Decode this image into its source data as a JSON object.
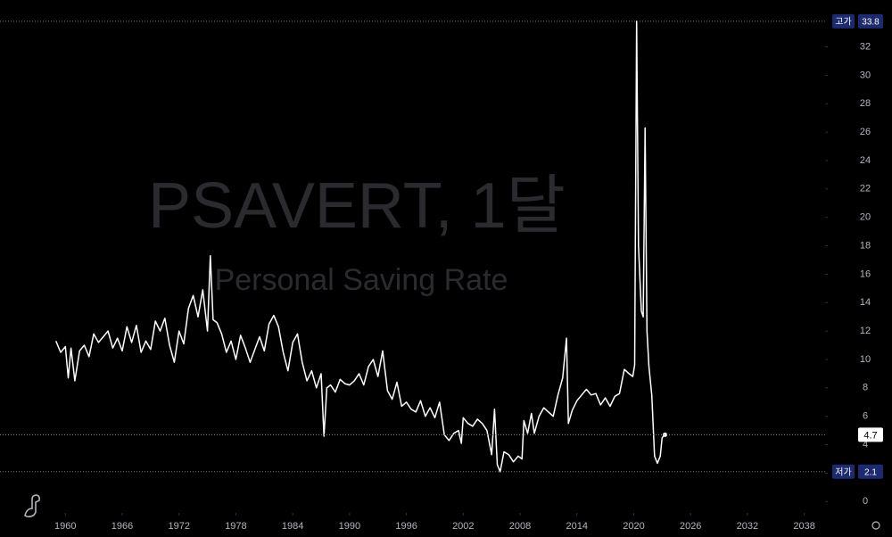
{
  "chart_data": {
    "type": "line",
    "title": "PSAVERT, 1달",
    "subtitle": "Personal Saving Rate",
    "x": [
      1959.0,
      1959.5,
      1960.0,
      1960.3,
      1960.6,
      1961.0,
      1961.5,
      1962.0,
      1962.5,
      1963.0,
      1963.5,
      1964.0,
      1964.5,
      1965.0,
      1965.5,
      1966.0,
      1966.5,
      1967.0,
      1967.5,
      1968.0,
      1968.5,
      1969.0,
      1969.5,
      1970.0,
      1970.5,
      1971.0,
      1971.5,
      1972.0,
      1972.5,
      1973.0,
      1973.5,
      1974.0,
      1974.5,
      1975.0,
      1975.3,
      1975.6,
      1976.0,
      1976.5,
      1977.0,
      1977.5,
      1978.0,
      1978.5,
      1979.0,
      1979.5,
      1980.0,
      1980.5,
      1981.0,
      1981.5,
      1982.0,
      1982.5,
      1983.0,
      1983.5,
      1984.0,
      1984.5,
      1985.0,
      1985.5,
      1986.0,
      1986.5,
      1987.0,
      1987.3,
      1987.6,
      1988.0,
      1988.5,
      1989.0,
      1989.5,
      1990.0,
      1990.5,
      1991.0,
      1991.5,
      1992.0,
      1992.5,
      1993.0,
      1993.5,
      1994.0,
      1994.5,
      1995.0,
      1995.5,
      1996.0,
      1996.5,
      1997.0,
      1997.5,
      1998.0,
      1998.5,
      1999.0,
      1999.5,
      2000.0,
      2000.5,
      2001.0,
      2001.5,
      2001.8,
      2002.0,
      2002.5,
      2003.0,
      2003.5,
      2004.0,
      2004.5,
      2005.0,
      2005.3,
      2005.6,
      2005.9,
      2006.3,
      2006.8,
      2007.3,
      2007.8,
      2008.2,
      2008.4,
      2008.8,
      2009.2,
      2009.5,
      2010.0,
      2010.5,
      2011.0,
      2011.5,
      2012.0,
      2012.5,
      2012.9,
      2013.1,
      2013.5,
      2014.0,
      2014.5,
      2015.0,
      2015.5,
      2016.0,
      2016.5,
      2017.0,
      2017.5,
      2018.0,
      2018.5,
      2019.0,
      2019.5,
      2019.9,
      2020.1,
      2020.3,
      2020.5,
      2020.8,
      2021.0,
      2021.2,
      2021.4,
      2021.6,
      2021.9,
      2022.2,
      2022.5,
      2022.8,
      2023.0,
      2023.3
    ],
    "series": [
      {
        "name": "PSAVERT",
        "color": "#ffffff",
        "values": [
          11.3,
          10.5,
          10.9,
          8.7,
          10.8,
          8.5,
          10.6,
          11.0,
          10.2,
          11.8,
          11.2,
          11.6,
          12.0,
          10.8,
          11.5,
          10.6,
          12.3,
          11.2,
          12.4,
          10.5,
          11.3,
          10.7,
          12.7,
          12.0,
          12.9,
          11.0,
          9.8,
          12.0,
          11.1,
          13.6,
          14.5,
          13.0,
          14.9,
          12.0,
          17.3,
          12.8,
          12.6,
          11.8,
          10.5,
          11.3,
          10.0,
          11.7,
          10.8,
          9.8,
          10.7,
          11.6,
          10.6,
          12.5,
          13.1,
          12.3,
          10.5,
          9.2,
          11.2,
          11.8,
          9.8,
          8.5,
          9.2,
          8.0,
          9.0,
          4.6,
          8.0,
          8.2,
          7.7,
          8.6,
          8.3,
          8.2,
          8.5,
          9.0,
          8.2,
          9.5,
          10.0,
          8.8,
          10.6,
          7.8,
          7.2,
          8.4,
          6.7,
          7.0,
          6.5,
          6.3,
          7.1,
          6.0,
          6.6,
          5.9,
          7.0,
          4.7,
          4.3,
          4.8,
          5.0,
          4.1,
          5.9,
          5.5,
          5.3,
          5.8,
          5.5,
          5.0,
          3.3,
          6.5,
          2.6,
          2.1,
          3.5,
          3.3,
          2.8,
          3.2,
          3.0,
          5.7,
          4.8,
          6.2,
          4.8,
          6.0,
          6.6,
          6.3,
          6.0,
          7.5,
          8.7,
          11.5,
          5.5,
          6.4,
          7.1,
          7.5,
          7.9,
          7.5,
          7.6,
          6.8,
          7.3,
          6.7,
          7.4,
          7.6,
          9.3,
          9.0,
          8.8,
          9.6,
          33.8,
          18.0,
          13.4,
          13.0,
          26.3,
          12.0,
          9.5,
          7.5,
          3.2,
          2.7,
          3.2,
          4.5,
          4.7
        ]
      }
    ],
    "price_lines": [
      {
        "label": "고가",
        "value": 33.8
      },
      {
        "label": "저가",
        "value": 2.1
      }
    ],
    "xlim": [
      1953.1,
      2040.2
    ],
    "xticks": [
      1960,
      1966,
      1972,
      1978,
      1984,
      1990,
      1996,
      2002,
      2008,
      2014,
      2020,
      2026,
      2032,
      2038
    ],
    "ylim": [
      -0.8,
      35.3
    ],
    "yticks": [
      0,
      2,
      4,
      6,
      8,
      10,
      12,
      14,
      16,
      18,
      20,
      22,
      24,
      26,
      28,
      30,
      32
    ],
    "grid": false
  }
}
